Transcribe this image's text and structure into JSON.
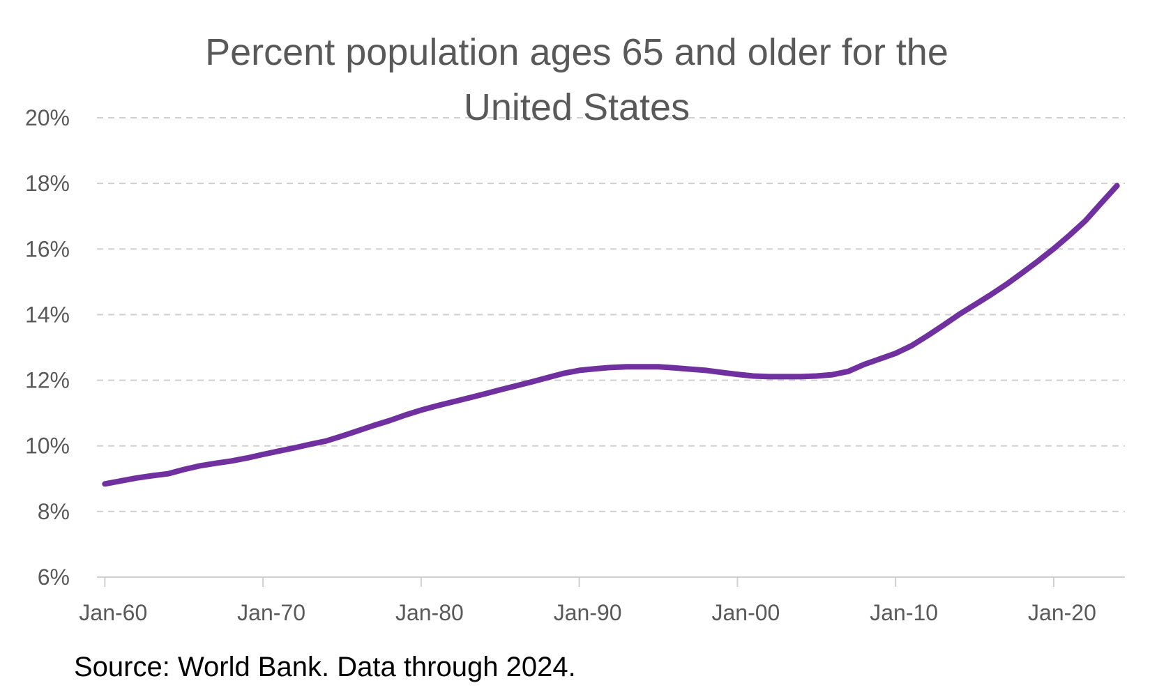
{
  "chart_data": {
    "type": "line",
    "title_lines": [
      "Percent population ages 65 and older for the",
      "United States"
    ],
    "xlabel": "",
    "ylabel": "",
    "x_ticks": [
      {
        "label": "Jan-60",
        "year": 1960
      },
      {
        "label": "Jan-70",
        "year": 1970
      },
      {
        "label": "Jan-80",
        "year": 1980
      },
      {
        "label": "Jan-90",
        "year": 1990
      },
      {
        "label": "Jan-00",
        "year": 2000
      },
      {
        "label": "Jan-10",
        "year": 2010
      },
      {
        "label": "Jan-20",
        "year": 2020
      }
    ],
    "y_ticks": [
      {
        "label": "6%",
        "value": 6
      },
      {
        "label": "8%",
        "value": 8
      },
      {
        "label": "10%",
        "value": 10
      },
      {
        "label": "12%",
        "value": 12
      },
      {
        "label": "14%",
        "value": 14
      },
      {
        "label": "16%",
        "value": 16
      },
      {
        "label": "18%",
        "value": 18
      },
      {
        "label": "20%",
        "value": 20
      }
    ],
    "ylim": [
      6,
      20
    ],
    "xlim": [
      1959.5,
      2024.5
    ],
    "grid": "horizontal dashed",
    "legend": "none",
    "series": [
      {
        "color": "#7030A0",
        "x": [
          1960,
          1961,
          1962,
          1963,
          1964,
          1965,
          1966,
          1967,
          1968,
          1969,
          1970,
          1971,
          1972,
          1973,
          1974,
          1975,
          1976,
          1977,
          1978,
          1979,
          1980,
          1981,
          1982,
          1983,
          1984,
          1985,
          1986,
          1987,
          1988,
          1989,
          1990,
          1991,
          1992,
          1993,
          1994,
          1995,
          1996,
          1997,
          1998,
          1999,
          2000,
          2001,
          2002,
          2003,
          2004,
          2005,
          2006,
          2007,
          2008,
          2009,
          2010,
          2011,
          2012,
          2013,
          2014,
          2015,
          2016,
          2017,
          2018,
          2019,
          2020,
          2021,
          2022,
          2023,
          2024
        ],
        "y": [
          8.84,
          8.93,
          9.02,
          9.09,
          9.15,
          9.28,
          9.39,
          9.47,
          9.54,
          9.63,
          9.74,
          9.84,
          9.94,
          10.05,
          10.15,
          10.3,
          10.46,
          10.62,
          10.77,
          10.94,
          11.09,
          11.22,
          11.34,
          11.46,
          11.58,
          11.71,
          11.83,
          11.95,
          12.08,
          12.21,
          12.3,
          12.35,
          12.39,
          12.41,
          12.41,
          12.41,
          12.38,
          12.34,
          12.3,
          12.24,
          12.18,
          12.13,
          12.11,
          12.11,
          12.11,
          12.13,
          12.17,
          12.27,
          12.48,
          12.65,
          12.82,
          13.05,
          13.35,
          13.67,
          14.0,
          14.3,
          14.6,
          14.92,
          15.27,
          15.63,
          16.01,
          16.42,
          16.86,
          17.4,
          17.93
        ]
      }
    ],
    "source_note": "Source: World Bank. Data through 2024."
  }
}
